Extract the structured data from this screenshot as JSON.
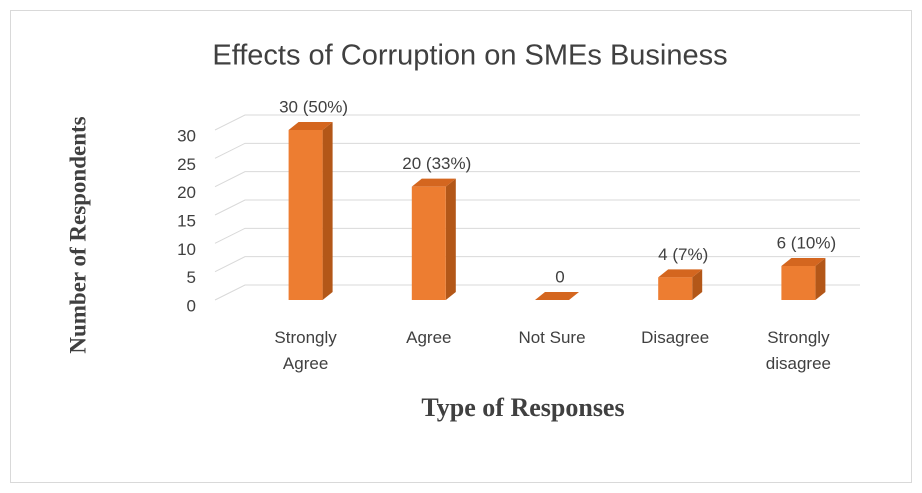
{
  "chart_data": {
    "type": "bar3d",
    "title": "Effects of Corruption on SMEs Business",
    "x_label": "Type of Responses",
    "y_label": "Number of Respondents",
    "categories": [
      "Strongly Agree",
      "Agree",
      "Not Sure",
      "Disagree",
      "Strongly disagree"
    ],
    "values": [
      30,
      20,
      0,
      4,
      6
    ],
    "value_labels": [
      "30 (50%)",
      "20 (33%)",
      "0",
      "4 (7%)",
      "6 (10%)"
    ],
    "color": "#ed7d31",
    "ylim": [
      0,
      30
    ],
    "yticks": [
      0,
      5,
      10,
      15,
      20,
      25,
      30
    ],
    "grid": true
  }
}
